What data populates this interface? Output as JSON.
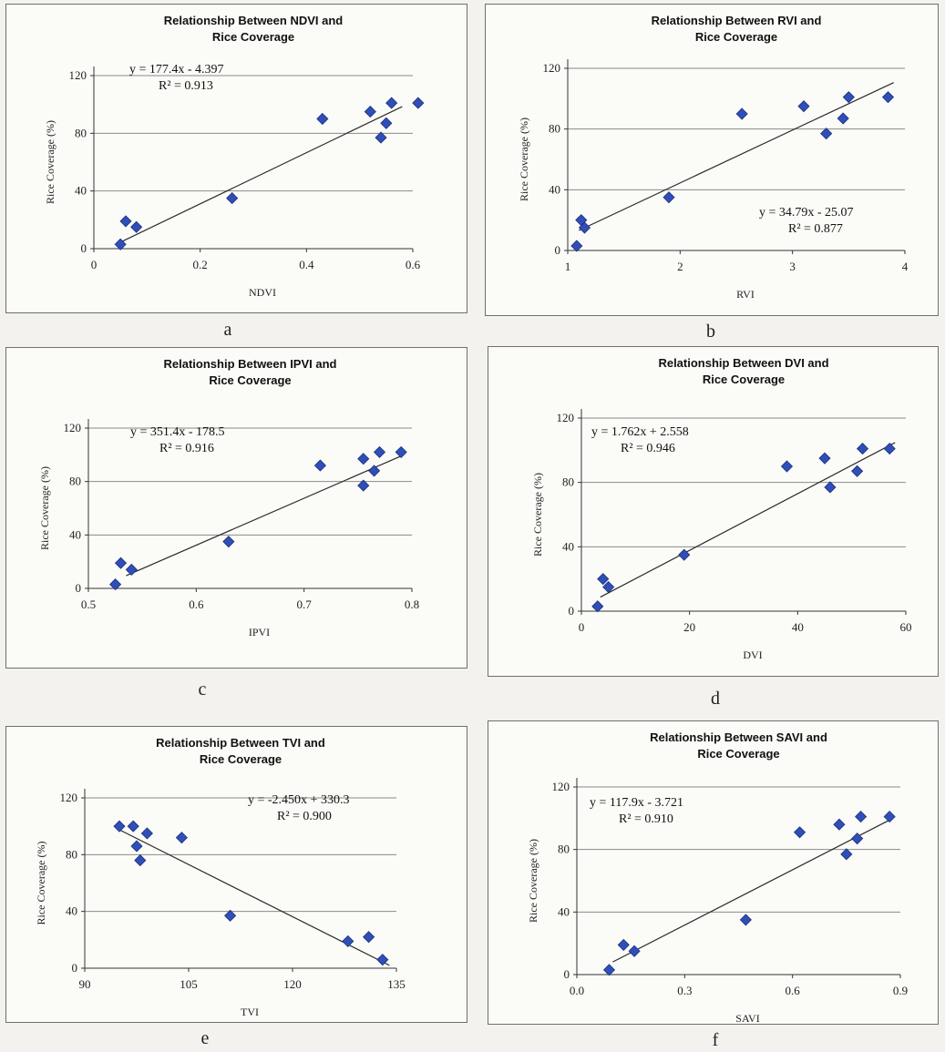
{
  "chart_data": [
    {
      "type": "scatter",
      "caption": "a",
      "title_line1": "Relationship Between NDVI and",
      "title_line2": "Rice Coverage",
      "xlabel": "NDVI",
      "ylabel": "Rice Coverage (%)",
      "xlim": [
        0,
        0.6
      ],
      "ylim": [
        0,
        120
      ],
      "xticks": [
        "0",
        "0.2",
        "0.4",
        "0.6"
      ],
      "yticks": [
        "0",
        "40",
        "80",
        "120"
      ],
      "equation": "y = 177.4x - 4.397",
      "r2": "R² = 0.913",
      "trend": {
        "slope": 177.4,
        "intercept": -4.397,
        "x0": 0.05,
        "x1": 0.58
      },
      "points": [
        [
          0.05,
          3
        ],
        [
          0.06,
          19
        ],
        [
          0.08,
          15
        ],
        [
          0.26,
          35
        ],
        [
          0.43,
          90
        ],
        [
          0.52,
          95
        ],
        [
          0.54,
          77
        ],
        [
          0.55,
          87
        ],
        [
          0.56,
          101
        ],
        [
          0.61,
          101
        ]
      ]
    },
    {
      "type": "scatter",
      "caption": "b",
      "title_line1": "Relationship Between RVI and",
      "title_line2": "Rice Coverage",
      "xlabel": "RVI",
      "ylabel": "Rice Coverage (%)",
      "xlim": [
        1,
        4
      ],
      "ylim": [
        0,
        120
      ],
      "xticks": [
        "1",
        "2",
        "3",
        "4"
      ],
      "yticks": [
        "0",
        "40",
        "80",
        "120"
      ],
      "equation": "y = 34.79x - 25.07",
      "r2": "R² = 0.877",
      "trend": {
        "slope": 34.79,
        "intercept": -25.07,
        "x0": 1.1,
        "x1": 3.9
      },
      "points": [
        [
          1.08,
          3
        ],
        [
          1.12,
          20
        ],
        [
          1.15,
          15
        ],
        [
          1.9,
          35
        ],
        [
          2.55,
          90
        ],
        [
          3.1,
          95
        ],
        [
          3.3,
          77
        ],
        [
          3.45,
          87
        ],
        [
          3.5,
          101
        ],
        [
          3.85,
          101
        ]
      ]
    },
    {
      "type": "scatter",
      "caption": "c",
      "title_line1": "Relationship Between IPVI and",
      "title_line2": "Rice Coverage",
      "xlabel": "IPVI",
      "ylabel": "Rice Coverage (%)",
      "xlim": [
        0.5,
        0.8
      ],
      "ylim": [
        0,
        120
      ],
      "xticks": [
        "0.5",
        "0.6",
        "0.7",
        "0.8"
      ],
      "yticks": [
        "0",
        "40",
        "80",
        "120"
      ],
      "equation": "y = 351.4x - 178.5",
      "r2": "R² = 0.916",
      "trend": {
        "slope": 351.4,
        "intercept": -178.5,
        "x0": 0.535,
        "x1": 0.79
      },
      "points": [
        [
          0.525,
          3
        ],
        [
          0.53,
          19
        ],
        [
          0.54,
          14
        ],
        [
          0.63,
          35
        ],
        [
          0.715,
          92
        ],
        [
          0.755,
          97
        ],
        [
          0.755,
          77
        ],
        [
          0.765,
          88
        ],
        [
          0.77,
          102
        ],
        [
          0.79,
          102
        ]
      ]
    },
    {
      "type": "scatter",
      "caption": "d",
      "title_line1": "Relationship Between DVI and",
      "title_line2": "Rice Coverage",
      "xlabel": "DVI",
      "ylabel": "Rice Coverage (%)",
      "xlim": [
        0,
        60
      ],
      "ylim": [
        0,
        120
      ],
      "xticks": [
        "0",
        "20",
        "40",
        "60"
      ],
      "yticks": [
        "0",
        "40",
        "80",
        "120"
      ],
      "equation": "y = 1.762x + 2.558",
      "r2": "R² = 0.946",
      "trend": {
        "slope": 1.762,
        "intercept": 2.558,
        "x0": 3.5,
        "x1": 58
      },
      "points": [
        [
          3,
          3
        ],
        [
          4,
          20
        ],
        [
          5,
          15
        ],
        [
          19,
          35
        ],
        [
          38,
          90
        ],
        [
          45,
          95
        ],
        [
          46,
          77
        ],
        [
          51,
          87
        ],
        [
          52,
          101
        ],
        [
          57,
          101
        ]
      ]
    },
    {
      "type": "scatter",
      "caption": "e",
      "title_line1": "Relationship Between TVI and",
      "title_line2": "Rice Coverage",
      "xlabel": "TVI",
      "ylabel": "Rice Coverage (%)",
      "xlim": [
        90,
        135
      ],
      "ylim": [
        0,
        120
      ],
      "xticks": [
        "90",
        "105",
        "120",
        "135"
      ],
      "yticks": [
        "0",
        "40",
        "80",
        "120"
      ],
      "equation": "y = -2.450x + 330.3",
      "r2": "R² = 0.900",
      "trend": {
        "slope": -2.45,
        "intercept": 330.3,
        "x0": 95,
        "x1": 134
      },
      "points": [
        [
          95,
          100
        ],
        [
          97,
          100
        ],
        [
          97.5,
          86
        ],
        [
          98,
          76
        ],
        [
          99,
          95
        ],
        [
          104,
          92
        ],
        [
          111,
          37
        ],
        [
          128,
          19
        ],
        [
          131,
          22
        ],
        [
          133,
          6
        ]
      ]
    },
    {
      "type": "scatter",
      "caption": "f",
      "title_line1": "Relationship Between SAVI and",
      "title_line2": "Rice Coverage",
      "xlabel": "SAVI",
      "ylabel": "Rice Coverage (%)",
      "xlim": [
        0.0,
        0.9
      ],
      "ylim": [
        0,
        120
      ],
      "xticks": [
        "0.0",
        "0.3",
        "0.6",
        "0.9"
      ],
      "yticks": [
        "0",
        "40",
        "80",
        "120"
      ],
      "equation": "y = 117.9x - 3.721",
      "r2": "R² = 0.910",
      "trend": {
        "slope": 117.9,
        "intercept": -3.721,
        "x0": 0.1,
        "x1": 0.87
      },
      "points": [
        [
          0.09,
          3
        ],
        [
          0.13,
          19
        ],
        [
          0.16,
          15
        ],
        [
          0.47,
          35
        ],
        [
          0.62,
          91
        ],
        [
          0.73,
          96
        ],
        [
          0.75,
          77
        ],
        [
          0.78,
          87
        ],
        [
          0.79,
          101
        ],
        [
          0.87,
          101
        ]
      ]
    }
  ]
}
